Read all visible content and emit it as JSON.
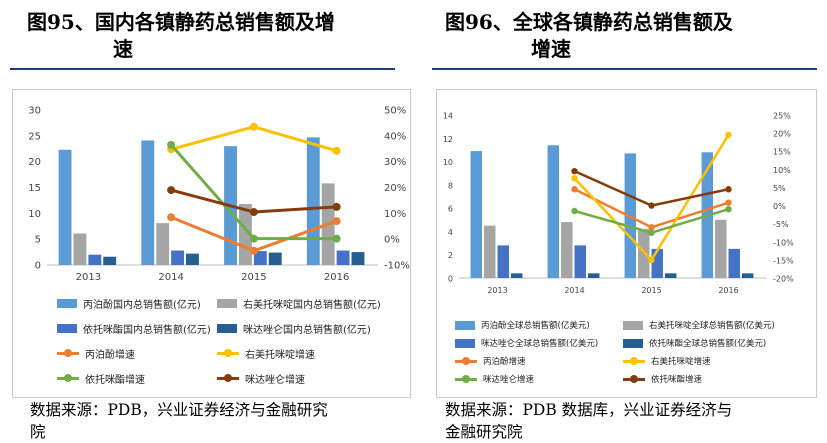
{
  "left_figure": {
    "title_line1": "图95、国内各镇静药总销售额及增",
    "title_line2": "速",
    "source_line1": "数据来源：PDB，兴业证券经济与金融研究",
    "source_line2": "院"
  },
  "right_figure": {
    "title_line1": "图96、全球各镇静药总销售额及",
    "title_line2": "增速",
    "source_line1": "数据来源：PDB 数据库，兴业证券经济与",
    "source_line2": "金融研究院"
  },
  "chart_data": [
    {
      "type": "bar",
      "categories": [
        "2013",
        "2014",
        "2015",
        "2016"
      ],
      "y_left_ticks": [
        "0",
        "5",
        "10",
        "15",
        "20",
        "25",
        "30"
      ],
      "y_right_ticks": [
        "-10%",
        "0%",
        "10%",
        "20%",
        "30%",
        "40%",
        "50%"
      ],
      "ylim_left": [
        0,
        30
      ],
      "ylim_right": [
        -10,
        50
      ],
      "series": [
        {
          "name": "丙泊酚国内总销售额(亿元)",
          "kind": "bar",
          "color": "#5b9bd5",
          "values": [
            22.3,
            24.1,
            23.0,
            24.7
          ]
        },
        {
          "name": "右美托咪啶国内总销售额(亿元)",
          "kind": "bar",
          "color": "#a5a5a5",
          "values": [
            6.1,
            8.1,
            11.8,
            15.8
          ]
        },
        {
          "name": "依托咪酯国内总销售额(亿元)",
          "kind": "bar",
          "color": "#4472c4",
          "values": [
            2.0,
            2.8,
            2.7,
            2.8
          ]
        },
        {
          "name": "咪达唑仑国内总销售额(亿元)",
          "kind": "bar",
          "color": "#255e91",
          "values": [
            1.6,
            2.2,
            2.4,
            2.5
          ]
        },
        {
          "name": "丙泊酚增速",
          "kind": "line",
          "color": "#ed7d31",
          "values": [
            null,
            8.5,
            -4.5,
            7.0
          ]
        },
        {
          "name": "右美托咪啶增速",
          "kind": "line",
          "color": "#ffc000",
          "values": [
            null,
            34.8,
            43.5,
            34.2
          ]
        },
        {
          "name": "依托咪酯增速",
          "kind": "line",
          "color": "#70ad47",
          "values": [
            null,
            36.5,
            0.2,
            0.2
          ]
        },
        {
          "name": "咪达唑仑增速",
          "kind": "line",
          "color": "#843c0c",
          "values": [
            null,
            19.0,
            10.5,
            12.5
          ]
        }
      ]
    },
    {
      "type": "bar",
      "categories": [
        "2013",
        "2014",
        "2015",
        "2016"
      ],
      "y_left_ticks": [
        "0",
        "2",
        "4",
        "6",
        "8",
        "10",
        "12",
        "14"
      ],
      "y_right_ticks": [
        "-20%",
        "-15%",
        "-10%",
        "-5%",
        "0%",
        "5%",
        "10%",
        "15%",
        "20%",
        "25%"
      ],
      "ylim_left": [
        0,
        14
      ],
      "ylim_right": [
        -20,
        25
      ],
      "series": [
        {
          "name": "丙泊酚全球总销售额(亿美元)",
          "kind": "bar",
          "color": "#5b9bd5",
          "values": [
            10.9,
            11.4,
            10.7,
            10.8
          ]
        },
        {
          "name": "右美托咪啶全球总销售额(亿美元)",
          "kind": "bar",
          "color": "#a5a5a5",
          "values": [
            4.5,
            4.8,
            4.2,
            5.0
          ]
        },
        {
          "name": "咪达唑仑全球总销售额(亿美元)",
          "kind": "bar",
          "color": "#4472c4",
          "values": [
            2.8,
            2.8,
            2.5,
            2.5
          ]
        },
        {
          "name": "依托咪酯全球总销售额(亿美元)",
          "kind": "bar",
          "color": "#255e91",
          "values": [
            0.4,
            0.4,
            0.4,
            0.4
          ]
        },
        {
          "name": "丙泊酚增速",
          "kind": "line",
          "color": "#ed7d31",
          "values": [
            null,
            4.5,
            -6.0,
            0.8
          ]
        },
        {
          "name": "右美托咪啶增速",
          "kind": "line",
          "color": "#ffc000",
          "values": [
            null,
            7.5,
            -15.0,
            19.5
          ]
        },
        {
          "name": "咪达唑仑增速",
          "kind": "line",
          "color": "#70ad47",
          "values": [
            null,
            -1.5,
            -7.5,
            -1.0
          ]
        },
        {
          "name": "依托咪酯增速",
          "kind": "line",
          "color": "#843c0c",
          "values": [
            null,
            9.5,
            0.0,
            4.5
          ]
        }
      ]
    }
  ]
}
